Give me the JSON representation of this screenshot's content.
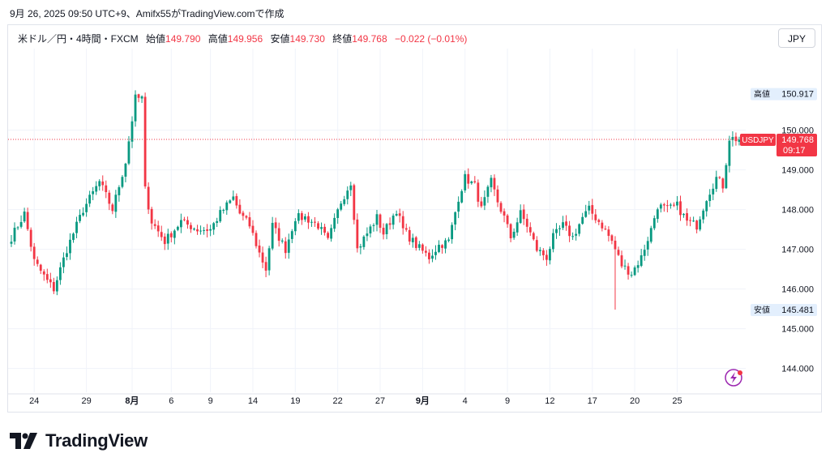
{
  "header": {
    "caption": "9月 26, 2025 09:50 UTC+9、Amifx55がTradingView.comで作成"
  },
  "legend": {
    "symbol": "米ドル／円・4時間・FXCM",
    "open_label": "始値",
    "open": "149.790",
    "high_label": "高値",
    "high": "149.956",
    "low_label": "安値",
    "low": "149.730",
    "close_label": "終値",
    "close": "149.768",
    "change": "−0.022 (−0.01%)"
  },
  "currency_button": "JPY",
  "footer": {
    "brand": "TradingView"
  },
  "colors": {
    "up": "#089981",
    "down": "#f23645",
    "grid": "#f0f3fa",
    "axis_text": "#131722"
  },
  "chart_data": {
    "type": "candlestick",
    "ylim": [
      143.4,
      151.4
    ],
    "y_ticks": [
      "144.000",
      "145.000",
      "146.000",
      "147.000",
      "148.000",
      "149.000",
      "150.000"
    ],
    "y_tick_values": [
      144,
      145,
      146,
      147,
      148,
      149,
      150
    ],
    "x_ticks": [
      "24",
      "29",
      "8月",
      "6",
      "9",
      "14",
      "19",
      "22",
      "27",
      "9月",
      "4",
      "9",
      "12",
      "17",
      "20",
      "25"
    ],
    "x_tick_bold": [
      false,
      false,
      true,
      false,
      false,
      false,
      false,
      false,
      false,
      true,
      false,
      false,
      false,
      false,
      false,
      false
    ],
    "x_tick_bar_index": [
      7,
      23,
      37,
      49,
      61,
      74,
      87,
      100,
      113,
      126,
      139,
      152,
      165,
      178,
      191,
      204
    ],
    "labels": [
      {
        "text": "高値",
        "value": "150.917",
        "y": 150.917
      },
      {
        "text": "安値",
        "value": "145.481",
        "y": 145.481
      }
    ],
    "last_price": {
      "symbol": "USDJPY",
      "value": "149.768",
      "countdown": "09:17",
      "y": 149.768
    },
    "close_anchors": [
      [
        0,
        147.3
      ],
      [
        4,
        147.9
      ],
      [
        7,
        146.7
      ],
      [
        11,
        146.2
      ],
      [
        13,
        146.0
      ],
      [
        17,
        147.0
      ],
      [
        22,
        148.0
      ],
      [
        27,
        148.7
      ],
      [
        31,
        148.0
      ],
      [
        35,
        149.2
      ],
      [
        38,
        150.8
      ],
      [
        40,
        150.8
      ],
      [
        41,
        148.5
      ],
      [
        43,
        147.7
      ],
      [
        47,
        147.2
      ],
      [
        52,
        147.7
      ],
      [
        57,
        147.5
      ],
      [
        61,
        147.5
      ],
      [
        64,
        147.9
      ],
      [
        68,
        148.3
      ],
      [
        70,
        147.9
      ],
      [
        73,
        147.6
      ],
      [
        76,
        146.9
      ],
      [
        78,
        146.5
      ],
      [
        80,
        147.6
      ],
      [
        84,
        147.0
      ],
      [
        87,
        147.8
      ],
      [
        90,
        147.8
      ],
      [
        94,
        147.6
      ],
      [
        97,
        147.2
      ],
      [
        101,
        148.2
      ],
      [
        104,
        148.7
      ],
      [
        106,
        147.0
      ],
      [
        109,
        147.4
      ],
      [
        112,
        147.8
      ],
      [
        114,
        147.4
      ],
      [
        118,
        148.0
      ],
      [
        120,
        147.5
      ],
      [
        124,
        147.1
      ],
      [
        128,
        146.8
      ],
      [
        131,
        147.1
      ],
      [
        134,
        147.2
      ],
      [
        137,
        148.3
      ],
      [
        139,
        148.8
      ],
      [
        142,
        148.6
      ],
      [
        144,
        148.0
      ],
      [
        147,
        148.7
      ],
      [
        149,
        148.2
      ],
      [
        151,
        147.8
      ],
      [
        153,
        147.3
      ],
      [
        156,
        147.9
      ],
      [
        158,
        147.6
      ],
      [
        161,
        147.0
      ],
      [
        164,
        146.8
      ],
      [
        166,
        147.3
      ],
      [
        169,
        147.6
      ],
      [
        172,
        147.3
      ],
      [
        175,
        147.8
      ],
      [
        177,
        148.0
      ],
      [
        181,
        147.6
      ],
      [
        184,
        147.2
      ],
      [
        187,
        146.6
      ],
      [
        190,
        146.4
      ],
      [
        193,
        146.8
      ],
      [
        196,
        147.5
      ],
      [
        198,
        148.1
      ],
      [
        201,
        148.0
      ],
      [
        204,
        148.1
      ],
      [
        207,
        147.7
      ],
      [
        210,
        147.6
      ],
      [
        213,
        148.3
      ],
      [
        216,
        148.8
      ],
      [
        218,
        148.6
      ],
      [
        220,
        149.8
      ],
      [
        223,
        149.77
      ]
    ]
  }
}
